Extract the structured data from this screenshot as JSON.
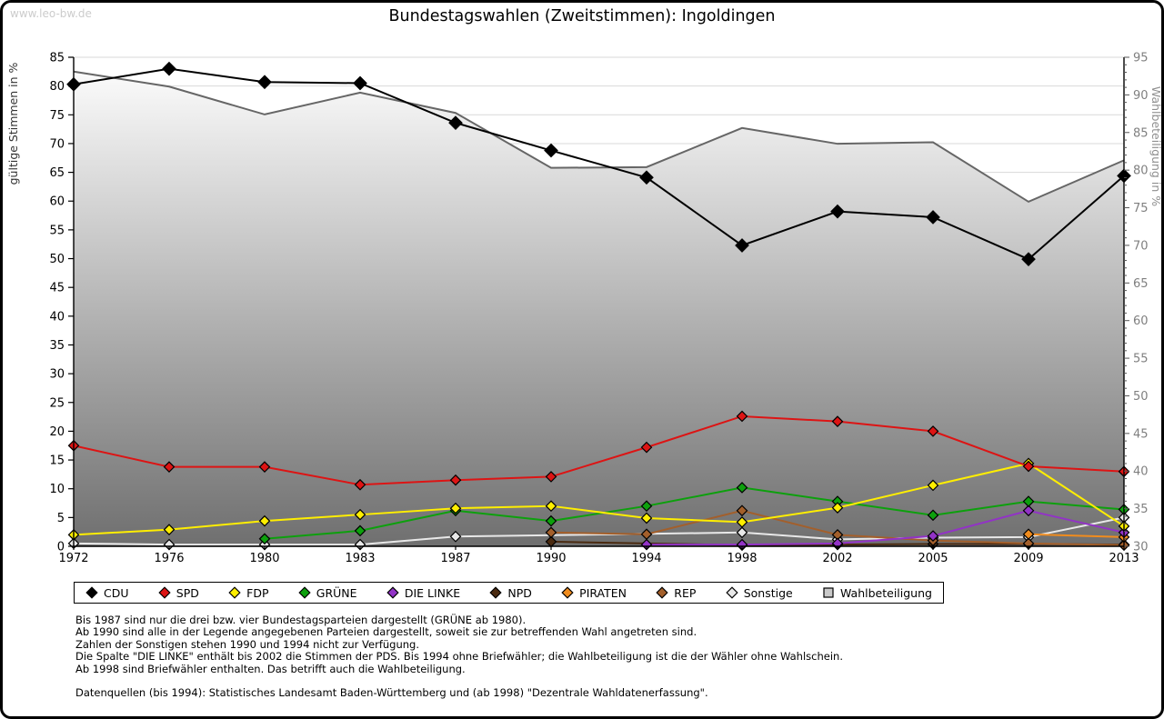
{
  "page": {
    "watermark": "www.leo-bw.de",
    "title": "Bundestagswahlen (Zweitstimmen): Ingoldingen"
  },
  "chart_data": {
    "type": "line",
    "title": "Bundestagswahlen (Zweitstimmen): Ingoldingen",
    "x_categories": [
      "1972",
      "1976",
      "1980",
      "1983",
      "1987",
      "1990",
      "1994",
      "1998",
      "2002",
      "2005",
      "2009",
      "2013"
    ],
    "left_axis": {
      "label": "gültige Stimmen in %",
      "min": 0,
      "max": 85,
      "tick_step": 5
    },
    "right_axis": {
      "label": "Wahlbeteiligung in %",
      "min": 30,
      "max": 95,
      "tick_step": 5
    },
    "grid": true,
    "legend_position": "bottom",
    "series": [
      {
        "name": "CDU",
        "axis": "left",
        "color": "#000000",
        "marker": "diamond",
        "marker_size": 7,
        "values": [
          80.3,
          83.0,
          80.7,
          80.5,
          73.6,
          68.8,
          64.1,
          52.3,
          58.2,
          57.2,
          49.9,
          64.4
        ]
      },
      {
        "name": "SPD",
        "axis": "left",
        "color": "#dd1414",
        "marker": "diamond",
        "marker_size": 5.5,
        "values": [
          17.5,
          13.8,
          13.8,
          10.7,
          11.5,
          12.1,
          17.2,
          22.6,
          21.7,
          20.0,
          13.9,
          13.0
        ]
      },
      {
        "name": "FDP",
        "axis": "left",
        "color": "#ffee00",
        "marker": "diamond",
        "marker_size": 5.5,
        "values": [
          2.0,
          2.9,
          4.4,
          5.5,
          6.6,
          7.0,
          4.9,
          4.2,
          6.7,
          10.6,
          14.4,
          3.5
        ]
      },
      {
        "name": "GRÜNE",
        "axis": "left",
        "color": "#0da00d",
        "marker": "diamond",
        "marker_size": 5.5,
        "values": [
          null,
          null,
          1.3,
          2.7,
          6.2,
          4.4,
          7.0,
          10.2,
          7.8,
          5.4,
          7.8,
          6.4
        ]
      },
      {
        "name": "DIE LINKE",
        "axis": "left",
        "color": "#9233c6",
        "marker": "diamond",
        "marker_size": 5.5,
        "values": [
          null,
          null,
          null,
          null,
          null,
          null,
          0.3,
          0.3,
          0.5,
          1.8,
          6.2,
          2.4
        ]
      },
      {
        "name": "NPD",
        "axis": "left",
        "color": "#4a2a10",
        "marker": "diamond",
        "marker_size": 5.5,
        "values": [
          null,
          null,
          null,
          null,
          null,
          0.8,
          null,
          0.2,
          0.3,
          0.4,
          0.4,
          0.3
        ]
      },
      {
        "name": "PIRATEN",
        "axis": "left",
        "color": "#f08c1e",
        "marker": "diamond",
        "marker_size": 5.5,
        "values": [
          null,
          null,
          null,
          null,
          null,
          null,
          null,
          null,
          null,
          null,
          2.1,
          1.6
        ]
      },
      {
        "name": "REP",
        "axis": "left",
        "color": "#a35f2b",
        "marker": "diamond",
        "marker_size": 5.5,
        "values": [
          null,
          null,
          null,
          null,
          null,
          2.4,
          2.1,
          6.2,
          2.0,
          1.0,
          0.5,
          0.2
        ]
      },
      {
        "name": "Sonstige",
        "axis": "left",
        "color": "#e8e8e8",
        "marker": "diamond",
        "marker_size": 5.5,
        "values": [
          0.5,
          0.3,
          0.3,
          0.3,
          1.7,
          null,
          null,
          2.4,
          1.2,
          1.5,
          1.6,
          5.0
        ]
      },
      {
        "name": "Wahlbeteiligung",
        "axis": "right",
        "color": "#666666",
        "marker": "square",
        "area": true,
        "area_gradient": [
          "#ffffff",
          "#6f6f6f"
        ],
        "values": [
          93.1,
          91.1,
          87.4,
          90.3,
          87.6,
          80.3,
          80.4,
          85.6,
          83.5,
          83.7,
          75.8,
          81.3
        ]
      }
    ]
  },
  "footer": {
    "notes": [
      "Bis 1987 sind nur die drei bzw. vier Bundestagsparteien dargestellt (GRÜNE ab 1980).",
      "Ab 1990 sind alle in der Legende angegebenen Parteien dargestellt, soweit sie zur betreffenden Wahl angetreten sind.",
      "Zahlen der Sonstigen stehen 1990 und 1994 nicht zur Verfügung.",
      "Die Spalte \"DIE LINKE\" enthält bis 2002 die Stimmen der PDS. Bis 1994 ohne Briefwähler; die Wahlbeteiligung ist die der Wähler ohne Wahlschein.",
      "Ab 1998 sind Briefwähler enthalten. Das betrifft auch die Wahlbeteiligung."
    ],
    "source": "Datenquellen (bis 1994): Statistisches Landesamt Baden-Württemberg und (ab 1998) \"Dezentrale Wahldatenerfassung\"."
  }
}
